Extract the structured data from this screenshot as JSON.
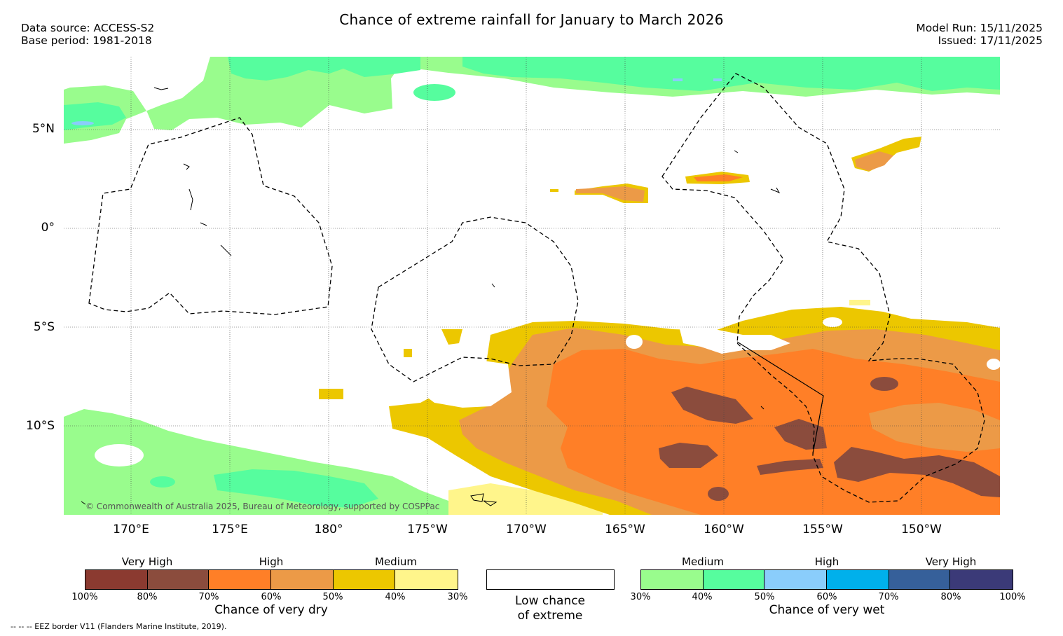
{
  "header": {
    "title": "Chance of extreme rainfall for January to March 2026",
    "data_source": "Data source: ACCESS-S2",
    "base_period": "Base period: 1981-2018",
    "model_run": "Model Run: 15/11/2025",
    "issued": "Issued: 17/11/2025"
  },
  "map": {
    "copyright": "© Commonwealth of Australia 2025, Bureau of Meteorology, supported by COSPPac",
    "lat_labels": [
      "5°N",
      "0°",
      "5°S",
      "10°S"
    ],
    "lon_labels": [
      "170°E",
      "175°E",
      "180°",
      "175°W",
      "170°W",
      "165°W",
      "160°W",
      "155°W",
      "150°W"
    ]
  },
  "legend_dry": {
    "title": "Chance of very dry",
    "categories": [
      "Very High",
      "High",
      "Medium"
    ],
    "ticks": [
      "100%",
      "80%",
      "70%",
      "60%",
      "50%",
      "40%",
      "30%"
    ],
    "colors": [
      "#8b3a30",
      "#8b4c3d",
      "#ff7f27",
      "#ec9a47",
      "#ecc700",
      "#fff58b"
    ]
  },
  "legend_low": {
    "title_line1": "Low chance",
    "title_line2": "of extreme",
    "color": "#ffffff"
  },
  "legend_wet": {
    "title": "Chance of very wet",
    "categories": [
      "Medium",
      "High",
      "Very High"
    ],
    "ticks": [
      "30%",
      "40%",
      "50%",
      "60%",
      "70%",
      "80%",
      "100%"
    ],
    "colors": [
      "#99fc8d",
      "#56fd9e",
      "#8acdfb",
      "#00b0eb",
      "#36609a",
      "#3b3a78"
    ]
  },
  "footer": {
    "eez_note": "--  --  -- EEZ border V11 (Flanders Marine Institute, 2019)."
  }
}
